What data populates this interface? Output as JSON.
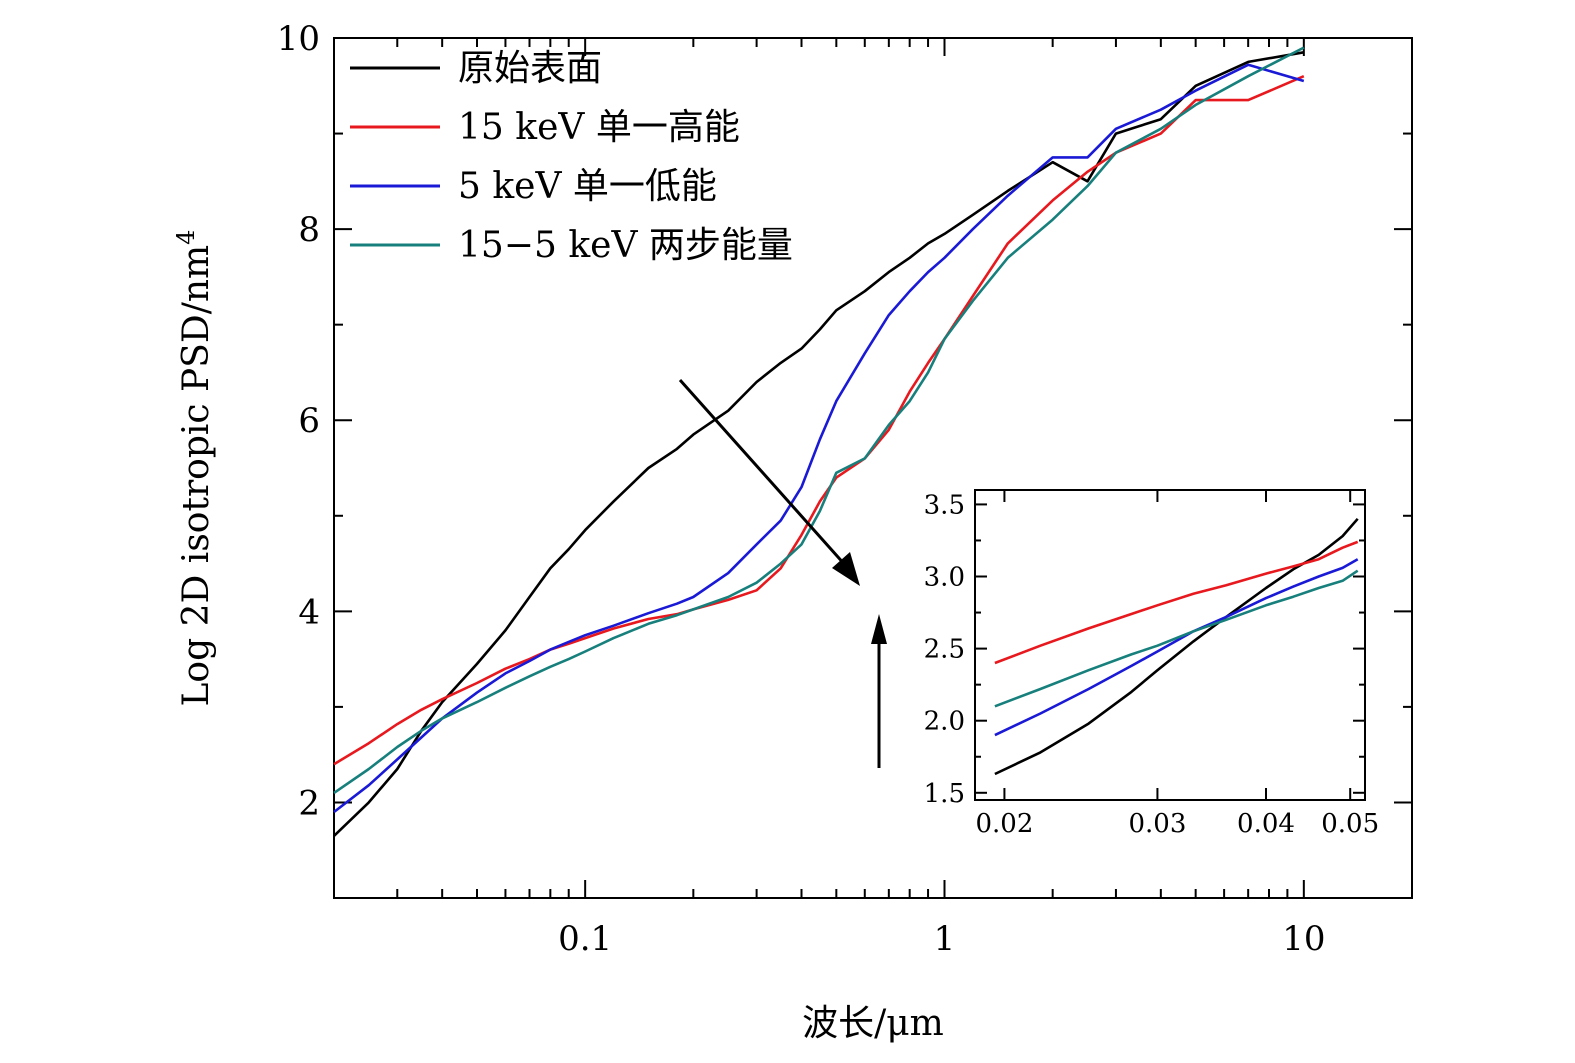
{
  "chart_data": {
    "type": "line",
    "x_scale": "log",
    "xlabel": "波长/μm",
    "ylabel": "Log 2D isotropic PSD/nm",
    "ylabel_superscript": "4",
    "xlim": [
      0.02,
      20
    ],
    "ylim": [
      1,
      10
    ],
    "x_ticks": [
      0.1,
      1,
      10
    ],
    "x_tick_labels": [
      "0.1",
      "1",
      "10"
    ],
    "y_ticks": [
      2,
      4,
      6,
      8,
      10
    ],
    "y_tick_labels": [
      "2",
      "4",
      "6",
      "8",
      "10"
    ],
    "legend_position": "top-left",
    "series": [
      {
        "name": "原始表面",
        "color": "#000000",
        "x": [
          0.02,
          0.025,
          0.03,
          0.035,
          0.04,
          0.05,
          0.06,
          0.07,
          0.08,
          0.09,
          0.1,
          0.12,
          0.15,
          0.18,
          0.2,
          0.25,
          0.3,
          0.35,
          0.4,
          0.45,
          0.5,
          0.6,
          0.7,
          0.8,
          0.9,
          1.0,
          1.2,
          1.5,
          2.0,
          2.5,
          3.0,
          4.0,
          5.0,
          7.0,
          10.0
        ],
        "y": [
          1.65,
          2.0,
          2.35,
          2.75,
          3.05,
          3.45,
          3.8,
          4.15,
          4.45,
          4.65,
          4.85,
          5.15,
          5.5,
          5.7,
          5.85,
          6.1,
          6.4,
          6.6,
          6.75,
          6.95,
          7.15,
          7.35,
          7.55,
          7.7,
          7.85,
          7.95,
          8.15,
          8.4,
          8.7,
          8.5,
          9.0,
          9.15,
          9.5,
          9.75,
          9.85
        ]
      },
      {
        "name": "15 keV 单一高能",
        "color": "#e8191e",
        "x": [
          0.02,
          0.025,
          0.03,
          0.035,
          0.04,
          0.05,
          0.06,
          0.07,
          0.08,
          0.09,
          0.1,
          0.12,
          0.15,
          0.18,
          0.2,
          0.25,
          0.3,
          0.35,
          0.4,
          0.45,
          0.5,
          0.6,
          0.7,
          0.8,
          0.9,
          1.0,
          1.2,
          1.5,
          2.0,
          2.5,
          3.0,
          4.0,
          5.0,
          7.0,
          10.0
        ],
        "y": [
          2.4,
          2.62,
          2.82,
          2.97,
          3.08,
          3.25,
          3.4,
          3.5,
          3.6,
          3.66,
          3.72,
          3.82,
          3.92,
          3.97,
          4.02,
          4.12,
          4.22,
          4.45,
          4.8,
          5.15,
          5.4,
          5.6,
          5.9,
          6.3,
          6.6,
          6.85,
          7.3,
          7.85,
          8.3,
          8.6,
          8.8,
          9.0,
          9.35,
          9.35,
          9.6
        ]
      },
      {
        "name": "5 keV 单一低能",
        "color": "#1a1ad6",
        "x": [
          0.02,
          0.025,
          0.03,
          0.035,
          0.04,
          0.05,
          0.06,
          0.07,
          0.08,
          0.09,
          0.1,
          0.12,
          0.15,
          0.18,
          0.2,
          0.25,
          0.3,
          0.35,
          0.4,
          0.45,
          0.5,
          0.6,
          0.7,
          0.8,
          0.9,
          1.0,
          1.2,
          1.5,
          2.0,
          2.5,
          3.0,
          4.0,
          5.0,
          7.0,
          10.0
        ],
        "y": [
          1.9,
          2.18,
          2.45,
          2.68,
          2.88,
          3.15,
          3.35,
          3.48,
          3.6,
          3.68,
          3.75,
          3.85,
          3.98,
          4.08,
          4.15,
          4.4,
          4.7,
          4.95,
          5.3,
          5.8,
          6.2,
          6.7,
          7.1,
          7.35,
          7.55,
          7.7,
          8.0,
          8.35,
          8.75,
          8.75,
          9.05,
          9.25,
          9.45,
          9.72,
          9.55
        ]
      },
      {
        "name": "15−5 keV 两步能量",
        "color": "#17807c",
        "x": [
          0.02,
          0.025,
          0.03,
          0.035,
          0.04,
          0.05,
          0.06,
          0.07,
          0.08,
          0.09,
          0.1,
          0.12,
          0.15,
          0.18,
          0.2,
          0.25,
          0.3,
          0.35,
          0.4,
          0.45,
          0.5,
          0.6,
          0.7,
          0.8,
          0.9,
          1.0,
          1.2,
          1.5,
          2.0,
          2.5,
          3.0,
          4.0,
          5.0,
          7.0,
          10.0
        ],
        "y": [
          2.1,
          2.35,
          2.58,
          2.75,
          2.88,
          3.05,
          3.2,
          3.32,
          3.42,
          3.5,
          3.58,
          3.72,
          3.87,
          3.96,
          4.02,
          4.15,
          4.3,
          4.5,
          4.7,
          5.05,
          5.45,
          5.6,
          5.95,
          6.2,
          6.5,
          6.85,
          7.25,
          7.7,
          8.1,
          8.45,
          8.8,
          9.05,
          9.3,
          9.6,
          9.9
        ]
      }
    ],
    "annotations": [
      {
        "type": "arrow",
        "description": "diagonal arrow pointing toward inset"
      },
      {
        "type": "arrow",
        "description": "vertical upward arrow"
      }
    ],
    "inset": {
      "type": "line",
      "x_scale": "log",
      "xlim": [
        0.0185,
        0.052
      ],
      "ylim": [
        1.45,
        3.6
      ],
      "x_ticks": [
        0.02,
        0.03,
        0.04,
        0.05
      ],
      "x_tick_labels": [
        "0.02",
        "0.03",
        "0.04",
        "0.05"
      ],
      "y_ticks": [
        1.5,
        2.0,
        2.5,
        3.0,
        3.5
      ],
      "y_tick_labels": [
        "1.5",
        "2.0",
        "2.5",
        "3.0",
        "3.5"
      ],
      "series": [
        {
          "name": "原始表面",
          "color": "#000000",
          "x": [
            0.0195,
            0.022,
            0.025,
            0.028,
            0.03,
            0.033,
            0.036,
            0.04,
            0.043,
            0.046,
            0.049,
            0.051
          ],
          "y": [
            1.63,
            1.78,
            1.98,
            2.2,
            2.35,
            2.55,
            2.72,
            2.92,
            3.05,
            3.15,
            3.28,
            3.4
          ]
        },
        {
          "name": "15 keV 单一高能",
          "color": "#e8191e",
          "x": [
            0.0195,
            0.022,
            0.025,
            0.028,
            0.03,
            0.033,
            0.036,
            0.04,
            0.043,
            0.046,
            0.049,
            0.051
          ],
          "y": [
            2.4,
            2.52,
            2.64,
            2.74,
            2.8,
            2.88,
            2.94,
            3.02,
            3.07,
            3.12,
            3.2,
            3.24
          ]
        },
        {
          "name": "5 keV 单一低能",
          "color": "#1a1ad6",
          "x": [
            0.0195,
            0.022,
            0.025,
            0.028,
            0.03,
            0.033,
            0.036,
            0.04,
            0.043,
            0.046,
            0.049,
            0.051
          ],
          "y": [
            1.9,
            2.05,
            2.22,
            2.38,
            2.48,
            2.62,
            2.72,
            2.85,
            2.93,
            3.0,
            3.06,
            3.12
          ]
        },
        {
          "name": "15−5 keV 两步能量",
          "color": "#17807c",
          "x": [
            0.0195,
            0.022,
            0.025,
            0.028,
            0.03,
            0.033,
            0.036,
            0.04,
            0.043,
            0.046,
            0.049,
            0.051
          ],
          "y": [
            2.1,
            2.22,
            2.35,
            2.46,
            2.52,
            2.62,
            2.7,
            2.8,
            2.86,
            2.92,
            2.97,
            3.04
          ]
        }
      ]
    }
  }
}
